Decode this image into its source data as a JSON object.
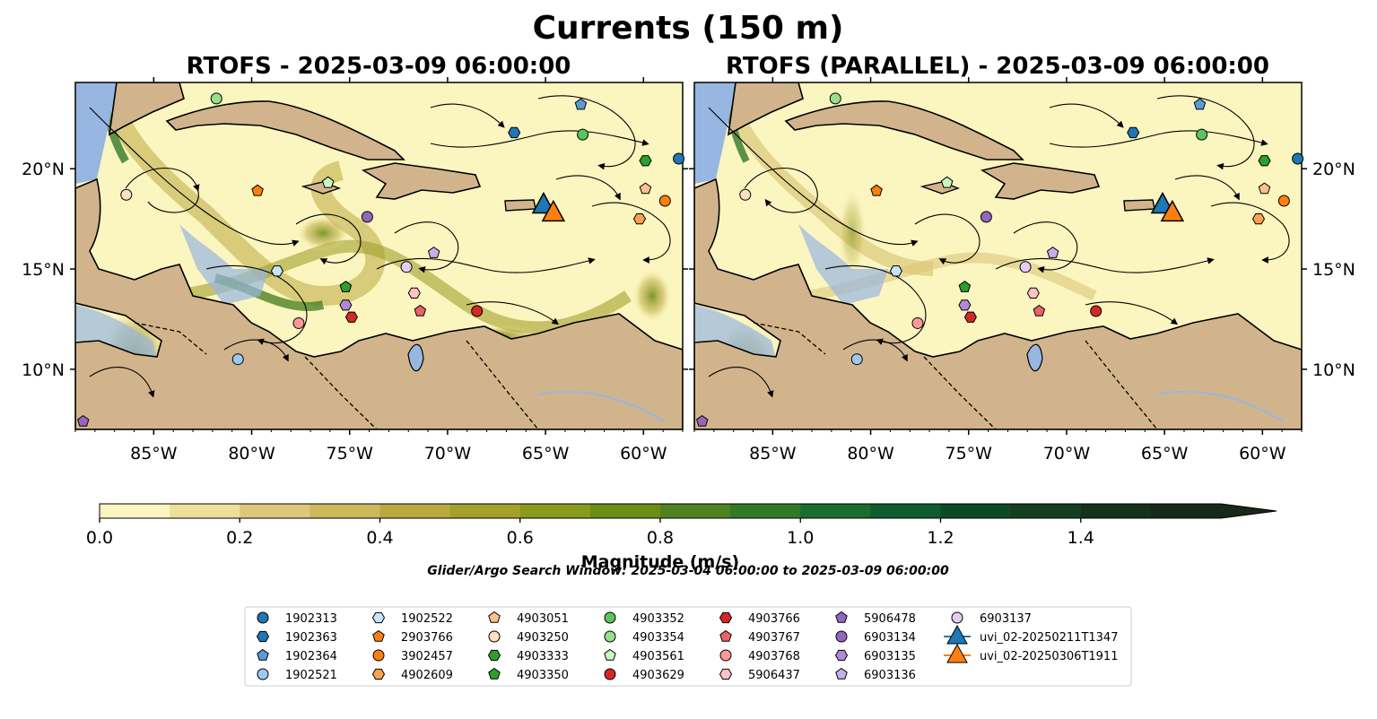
{
  "figure": {
    "title": "Currents (150 m)",
    "note": "Glider/Argo Search Window: 2025-03-04 06:00:00 to 2025-03-09 06:00:00"
  },
  "colors": {
    "land": "#d2b48c",
    "water_low": "#97b6e1",
    "ramp": [
      "#fbf5c0",
      "#ece09a",
      "#ddc77a",
      "#cdb85b",
      "#bba83f",
      "#a3a02b",
      "#8a9a1b",
      "#6c8e17",
      "#4f8220",
      "#327a28",
      "#1b6d2e",
      "#0f5c2f",
      "#0c4a27",
      "#123f22",
      "#16311b",
      "#18281a"
    ]
  },
  "chart_data": [
    {
      "type": "map",
      "panel": "left",
      "title": "RTOFS - 2025-03-09 06:00:00",
      "xlim": [
        -89,
        -58
      ],
      "ylim": [
        7,
        24.3
      ],
      "xticks": [
        "85°W",
        "80°W",
        "75°W",
        "70°W",
        "65°W",
        "60°W"
      ],
      "xtick_values": [
        -85,
        -80,
        -75,
        -70,
        -65,
        -60
      ],
      "yticks": [
        "20°N",
        "15°N",
        "10°N"
      ],
      "ytick_values": [
        20,
        15,
        10
      ],
      "ytick_side": "left"
    },
    {
      "type": "map",
      "panel": "right",
      "title": "RTOFS (PARALLEL) - 2025-03-09 06:00:00",
      "xlim": [
        -89,
        -58
      ],
      "ylim": [
        7,
        24.3
      ],
      "xticks": [
        "85°W",
        "80°W",
        "75°W",
        "70°W",
        "65°W",
        "60°W"
      ],
      "xtick_values": [
        -85,
        -80,
        -75,
        -70,
        -65,
        -60
      ],
      "yticks": [
        "20°N",
        "15°N",
        "10°N"
      ],
      "ytick_values": [
        20,
        15,
        10
      ],
      "ytick_side": "right"
    }
  ],
  "colorbar": {
    "label": "Magnitude (m/s)",
    "min": 0.0,
    "max": 1.6,
    "step": 0.1,
    "extend": "max",
    "tick_labels": [
      "0.0",
      "0.2",
      "0.4",
      "0.6",
      "0.8",
      "1.0",
      "1.2",
      "1.4"
    ],
    "tick_values": [
      0.0,
      0.2,
      0.4,
      0.6,
      0.8,
      1.0,
      1.2,
      1.4
    ]
  },
  "markers": [
    {
      "id": "1902313",
      "shape": "circle",
      "color": "#1f77b4",
      "lon": -58.2,
      "lat": 20.5
    },
    {
      "id": "1902363",
      "shape": "hexagon",
      "color": "#1f77b4",
      "lon": -66.6,
      "lat": 21.8
    },
    {
      "id": "1902364",
      "shape": "pentagon",
      "color": "#5b9bd5",
      "lon": -63.2,
      "lat": 23.2
    },
    {
      "id": "1902521",
      "shape": "circle",
      "color": "#9ec9ee",
      "lon": -80.7,
      "lat": 10.5
    },
    {
      "id": "1902522",
      "shape": "hexagon",
      "color": "#c6e4fb",
      "lon": -78.7,
      "lat": 14.9
    },
    {
      "id": "2903766",
      "shape": "pentagon",
      "color": "#ff7f0e",
      "lon": -79.7,
      "lat": 18.9
    },
    {
      "id": "3902457",
      "shape": "circle",
      "color": "#ff7f0e",
      "lon": -58.9,
      "lat": 18.4
    },
    {
      "id": "4902609",
      "shape": "hexagon",
      "color": "#ffa050",
      "lon": -60.2,
      "lat": 17.5
    },
    {
      "id": "4903051",
      "shape": "pentagon",
      "color": "#ffc08a",
      "lon": -59.9,
      "lat": 19.0
    },
    {
      "id": "4903250",
      "shape": "circle",
      "color": "#ffe0c2",
      "lon": -86.4,
      "lat": 18.7
    },
    {
      "id": "4903333",
      "shape": "hexagon",
      "color": "#2ca02c",
      "lon": -59.9,
      "lat": 20.4
    },
    {
      "id": "4903350",
      "shape": "pentagon",
      "color": "#2ca02c",
      "lon": -75.2,
      "lat": 14.1
    },
    {
      "id": "4903352",
      "shape": "circle",
      "color": "#5cc45c",
      "lon": -63.1,
      "lat": 21.7
    },
    {
      "id": "4903354",
      "shape": "circle",
      "color": "#98df8a",
      "lon": -81.8,
      "lat": 23.5
    },
    {
      "id": "4903561",
      "shape": "pentagon",
      "color": "#ccf5c0",
      "lon": -76.1,
      "lat": 19.3
    },
    {
      "id": "4903629",
      "shape": "circle",
      "color": "#d62728",
      "lon": -68.5,
      "lat": 12.9
    },
    {
      "id": "4903766",
      "shape": "hexagon",
      "color": "#d62728",
      "lon": -74.9,
      "lat": 12.6
    },
    {
      "id": "4903767",
      "shape": "pentagon",
      "color": "#e86466",
      "lon": -71.4,
      "lat": 12.9
    },
    {
      "id": "4903768",
      "shape": "circle",
      "color": "#ff9896",
      "lon": -77.6,
      "lat": 12.3
    },
    {
      "id": "5906437",
      "shape": "hexagon",
      "color": "#ffc4c2",
      "lon": -71.7,
      "lat": 13.8
    },
    {
      "id": "5906478",
      "shape": "pentagon",
      "color": "#9467bd",
      "lon": -88.6,
      "lat": 7.4
    },
    {
      "id": "6903134",
      "shape": "circle",
      "color": "#9467bd",
      "lon": -74.1,
      "lat": 17.6
    },
    {
      "id": "6903135",
      "shape": "hexagon",
      "color": "#b08ad6",
      "lon": -75.2,
      "lat": 13.2
    },
    {
      "id": "6903136",
      "shape": "pentagon",
      "color": "#c5b0ea",
      "lon": -70.7,
      "lat": 15.8
    },
    {
      "id": "6903137",
      "shape": "circle",
      "color": "#e5ccf5",
      "lon": -72.1,
      "lat": 15.1
    },
    {
      "id": "uvi_02-20250211T1347",
      "shape": "triangle",
      "color": "#1f77b4",
      "lon": -65.1,
      "lat": 18.2
    },
    {
      "id": "uvi_02-20250306T1911",
      "shape": "triangle",
      "color": "#ff7f0e",
      "lon": -64.6,
      "lat": 17.8
    }
  ],
  "legend": {
    "columns": 7,
    "items": [
      "1902313",
      "1902363",
      "1902364",
      "1902521",
      "1902522",
      "2903766",
      "3902457",
      "4902609",
      "4903051",
      "4903250",
      "4903333",
      "4903350",
      "4903352",
      "4903354",
      "4903561",
      "4903629",
      "4903766",
      "4903767",
      "4903768",
      "5906437",
      "5906478",
      "6903134",
      "6903135",
      "6903136",
      "6903137",
      "uvi_02-20250211T1347",
      "uvi_02-20250306T1911"
    ]
  }
}
